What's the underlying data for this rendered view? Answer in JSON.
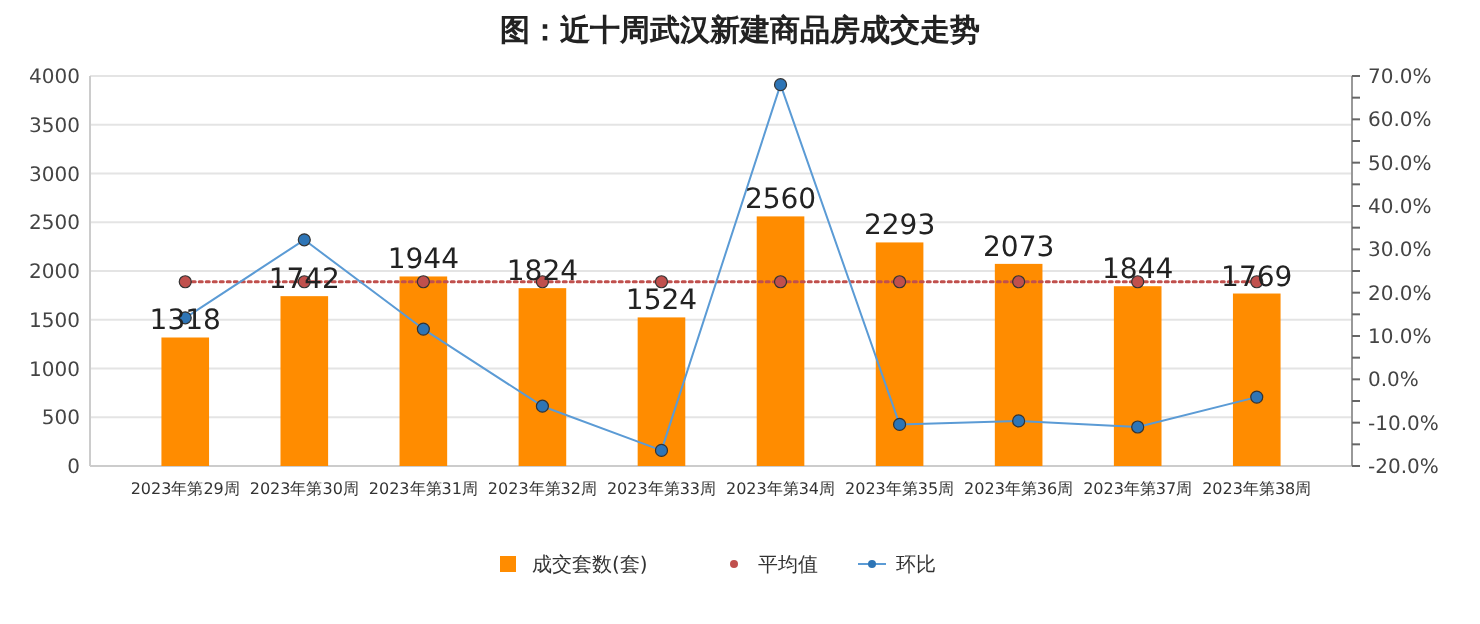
{
  "chart_data": {
    "type": "bar",
    "title": "图：近十周武汉新建商品房成交走势",
    "categories": [
      "2023年第29周",
      "2023年第30周",
      "2023年第31周",
      "2023年第32周",
      "2023年第33周",
      "2023年第34周",
      "2023年第35周",
      "2023年第36周",
      "2023年第37周",
      "2023年第38周"
    ],
    "series": [
      {
        "name": "成交套数(套)",
        "color": "#ff8c00",
        "values": [
          1318,
          1742,
          1944,
          1824,
          1524,
          2560,
          2293,
          2073,
          1844,
          1769
        ],
        "data_labels": true
      },
      {
        "name": "平均值",
        "type": "line",
        "color": "#c0504d",
        "line_style": "dotted",
        "marker": "circle",
        "values": [
          1890,
          1890,
          1890,
          1890,
          1890,
          1890,
          1890,
          1890,
          1890,
          1890
        ]
      },
      {
        "name": "环比",
        "type": "line",
        "axis": "y2",
        "color": "#5b9bd5",
        "line_style": "solid",
        "marker": "circle",
        "values": [
          14.2,
          32.2,
          11.6,
          -6.2,
          -16.4,
          68.0,
          -10.4,
          -9.6,
          -11.0,
          -4.1
        ]
      }
    ],
    "ylim": [
      0,
      4000
    ],
    "yticks": [
      0,
      500,
      1000,
      1500,
      2000,
      2500,
      3000,
      3500,
      4000
    ],
    "y2lim": [
      -20,
      70
    ],
    "y2ticks": [
      {
        "value": -20,
        "label": "-20.0%"
      },
      {
        "value": -15,
        "label": null
      },
      {
        "value": -10,
        "label": "-10.0%"
      },
      {
        "value": -5,
        "label": null
      },
      {
        "value": 0,
        "label": "0.0%"
      },
      {
        "value": 5,
        "label": null
      },
      {
        "value": 10,
        "label": "10.0%"
      },
      {
        "value": 15,
        "label": null
      },
      {
        "value": 20,
        "label": "20.0%"
      },
      {
        "value": 25,
        "label": null
      },
      {
        "value": 30,
        "label": "30.0%"
      },
      {
        "value": 35,
        "label": null
      },
      {
        "value": 40,
        "label": "40.0%"
      },
      {
        "value": 45,
        "label": null
      },
      {
        "value": 50,
        "label": "50.0%"
      },
      {
        "value": 55,
        "label": null
      },
      {
        "value": 60,
        "label": "60.0%"
      },
      {
        "value": 65,
        "label": null
      },
      {
        "value": 70,
        "label": "70.0%"
      }
    ],
    "grid": "y",
    "legend": "bottom"
  }
}
